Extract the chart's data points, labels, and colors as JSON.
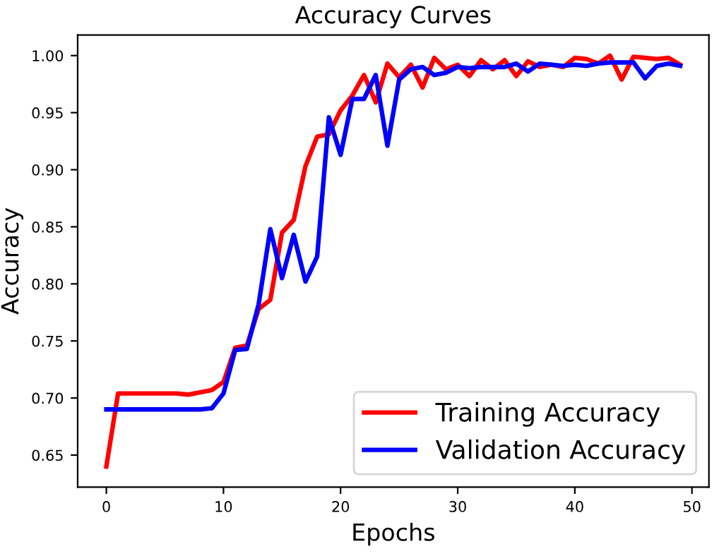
{
  "chart_data": {
    "type": "line",
    "title": "Accuracy Curves",
    "xlabel": "Epochs",
    "ylabel": "Accuracy",
    "x": [
      0,
      1,
      2,
      3,
      4,
      5,
      6,
      7,
      8,
      9,
      10,
      11,
      12,
      13,
      14,
      15,
      16,
      17,
      18,
      19,
      20,
      21,
      22,
      23,
      24,
      25,
      26,
      27,
      28,
      29,
      30,
      31,
      32,
      33,
      34,
      35,
      36,
      37,
      38,
      39,
      40,
      41,
      42,
      43,
      44,
      45,
      46,
      47,
      48,
      49
    ],
    "series": [
      {
        "name": "Training Accuracy",
        "color": "#ff0000",
        "values": [
          0.64,
          0.704,
          0.704,
          0.704,
          0.704,
          0.704,
          0.704,
          0.703,
          0.705,
          0.707,
          0.714,
          0.744,
          0.746,
          0.778,
          0.786,
          0.845,
          0.856,
          0.903,
          0.929,
          0.931,
          0.952,
          0.965,
          0.983,
          0.959,
          0.993,
          0.981,
          0.992,
          0.972,
          0.998,
          0.988,
          0.992,
          0.982,
          0.996,
          0.988,
          0.996,
          0.982,
          0.995,
          0.99,
          0.992,
          0.99,
          0.998,
          0.997,
          0.993,
          1.0,
          0.979,
          0.999,
          0.998,
          0.997,
          0.998,
          0.992
        ]
      },
      {
        "name": "Validation Accuracy",
        "color": "#0000ff",
        "values": [
          0.69,
          0.69,
          0.69,
          0.69,
          0.69,
          0.69,
          0.69,
          0.69,
          0.69,
          0.691,
          0.704,
          0.742,
          0.743,
          0.782,
          0.848,
          0.805,
          0.843,
          0.802,
          0.824,
          0.946,
          0.913,
          0.962,
          0.962,
          0.983,
          0.921,
          0.979,
          0.988,
          0.99,
          0.983,
          0.985,
          0.99,
          0.989,
          0.99,
          0.99,
          0.99,
          0.993,
          0.986,
          0.993,
          0.992,
          0.991,
          0.992,
          0.991,
          0.993,
          0.994,
          0.994,
          0.994,
          0.98,
          0.991,
          0.993,
          0.991
        ]
      }
    ],
    "xlim": [
      -2.45,
      51.45
    ],
    "xticks": [
      0,
      10,
      20,
      30,
      40,
      50
    ],
    "ylim": [
      0.622,
      1.018
    ],
    "yticks": [
      {
        "value": 0.65,
        "label": "0.65"
      },
      {
        "value": 0.7,
        "label": "0.70"
      },
      {
        "value": 0.75,
        "label": "0.75"
      },
      {
        "value": 0.8,
        "label": "0.80"
      },
      {
        "value": 0.85,
        "label": "0.85"
      },
      {
        "value": 0.9,
        "label": "0.90"
      },
      {
        "value": 0.95,
        "label": "0.95"
      },
      {
        "value": 1.0,
        "label": "1.00"
      }
    ],
    "legend": "lower right",
    "grid": false,
    "marker": "none",
    "line_style": "solid"
  }
}
